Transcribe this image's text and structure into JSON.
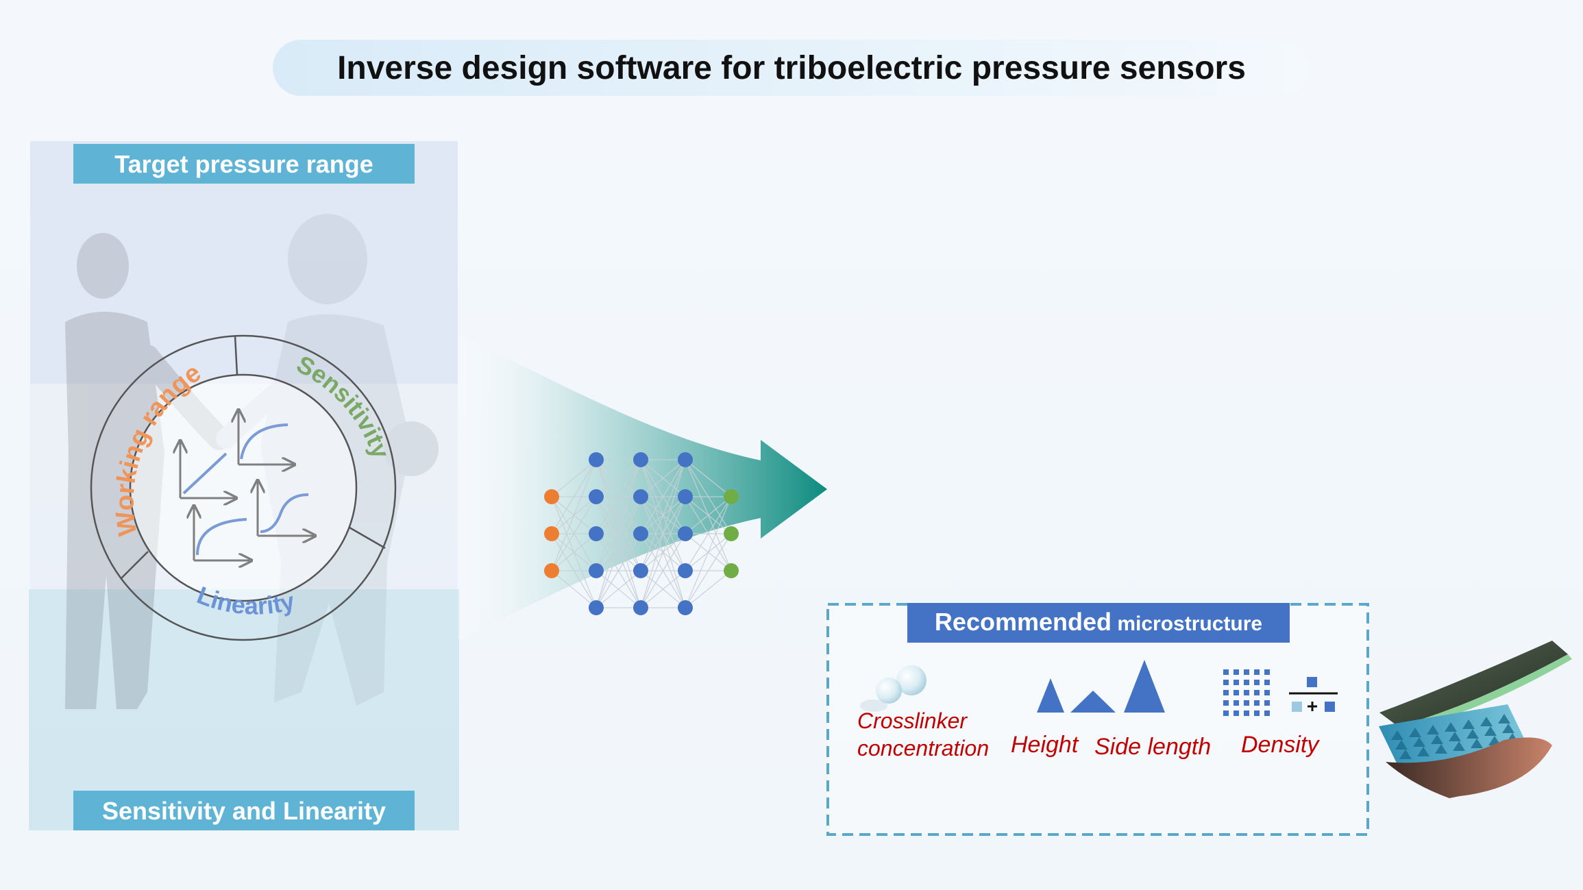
{
  "title": "Inverse design software for triboelectric pressure sensors",
  "left_panel": {
    "top_label": "Target pressure range",
    "bottom_label": "Sensitivity and Linearity",
    "ring": {
      "working_range": "Working range",
      "sensitivity": "Sensitivity",
      "linearity": "Linearity"
    }
  },
  "network": {
    "layers": [
      3,
      5,
      5,
      5,
      3
    ],
    "input_color": "#ed7d31",
    "hidden_color": "#4472c4",
    "output_color": "#70ad47"
  },
  "recommend": {
    "header_main": "Recommended",
    "header_sub": " microstructure",
    "crosslinker_line1": "Crosslinker",
    "crosslinker_line2": "concentration",
    "height": "Height",
    "side_length": "Side length",
    "density": "Density"
  },
  "colors": {
    "label_box": "#5fb4d6",
    "header_box": "#4472c4",
    "param_text": "#c00000",
    "ring_orange": "#f0955a",
    "ring_green": "#7aa865",
    "ring_blue": "#6b93d6",
    "arrow_teal": "#0e8a80"
  }
}
